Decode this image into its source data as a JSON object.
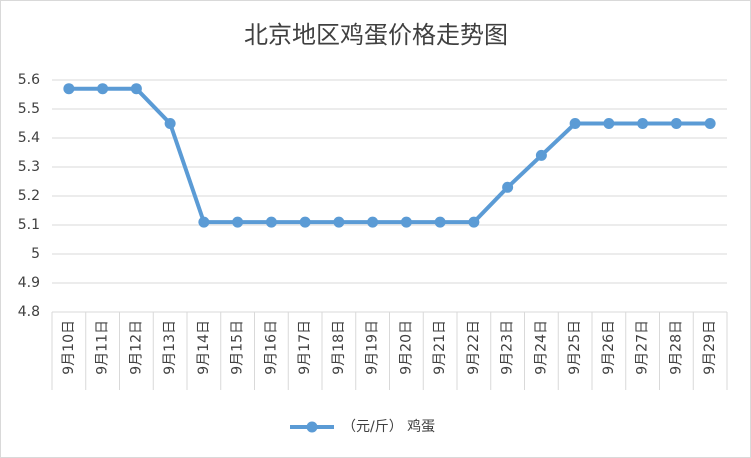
{
  "chart_data": {
    "type": "line",
    "title": "北京地区鸡蛋价格走势图",
    "categories": [
      "9月10日",
      "9月11日",
      "9月12日",
      "9月13日",
      "9月14日",
      "9月15日",
      "9月16日",
      "9月17日",
      "9月18日",
      "9月19日",
      "9月20日",
      "9月21日",
      "9月22日",
      "9月23日",
      "9月24日",
      "9月25日",
      "9月26日",
      "9月27日",
      "9月28日",
      "9月29日"
    ],
    "series": [
      {
        "name": "（元/斤） 鸡蛋",
        "color": "#5b9bd5",
        "values": [
          5.57,
          5.57,
          5.57,
          5.45,
          5.11,
          5.11,
          5.11,
          5.11,
          5.11,
          5.11,
          5.11,
          5.11,
          5.11,
          5.23,
          5.34,
          5.45,
          5.45,
          5.45,
          5.45,
          5.45
        ]
      }
    ],
    "ylim": [
      4.8,
      5.6
    ],
    "yticks": [
      4.8,
      4.9,
      5,
      5.1,
      5.2,
      5.3,
      5.4,
      5.5,
      5.6
    ],
    "grid": true,
    "legend": "bottom"
  }
}
